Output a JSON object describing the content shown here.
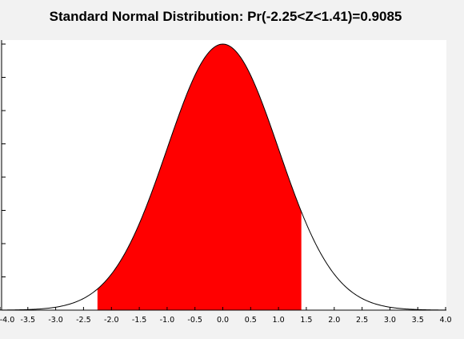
{
  "chart_data": {
    "type": "area",
    "title": "Standard Normal Distribution: Pr(-2.25<Z<1.41)=0.9085",
    "curve": "standard normal density",
    "shaded_interval": [
      -2.25,
      1.41
    ],
    "probability": 0.9085,
    "xlim": [
      -4.0,
      4.0
    ],
    "ylim": [
      0,
      0.4
    ],
    "x_ticks": [
      "-4.0",
      "-3.5",
      "-3.0",
      "-2.5",
      "-2.0",
      "-1.5",
      "-1.0",
      "-0.5",
      "0.0",
      "0.5",
      "1.0",
      "1.5",
      "2.0",
      "2.5",
      "3.0",
      "3.5",
      "4.0"
    ],
    "y_tick_count": 8,
    "grid": false,
    "colors": {
      "shade": "#ff0000",
      "curve": "#000000",
      "plot_bg": "#ffffff",
      "page_bg": "#f2f2f2"
    }
  }
}
